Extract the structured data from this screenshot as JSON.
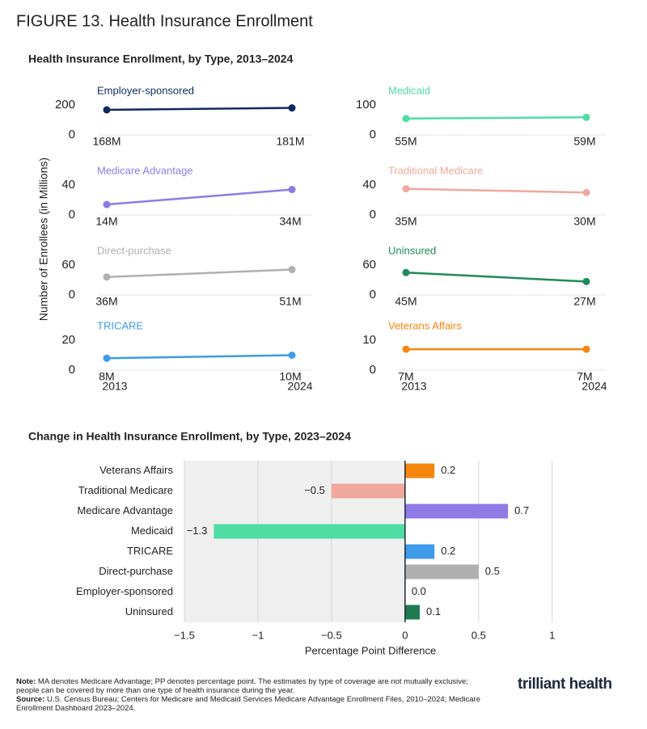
{
  "title": "FIGURE 13. Health Insurance Enrollment",
  "chart_data": [
    {
      "type": "line-panels",
      "title": "Health Insurance Enrollment, by Type, 2013–2024",
      "y_label": "Number of Enrollees (in Millions)",
      "x": [
        2013,
        2024
      ],
      "series": [
        {
          "name": "Employer-sponsored",
          "color": "#0d2b5e",
          "values": [
            168,
            181
          ],
          "value_labels": [
            "168M",
            "181M"
          ],
          "ylim": [
            0,
            200
          ],
          "yticks": [
            0,
            200
          ]
        },
        {
          "name": "Medicaid",
          "color": "#4fdca4",
          "values": [
            55,
            59
          ],
          "value_labels": [
            "55M",
            "59M"
          ],
          "ylim": [
            0,
            100
          ],
          "yticks": [
            0,
            100
          ]
        },
        {
          "name": "Medicare Advantage",
          "color": "#8f7ae6",
          "values": [
            14,
            34
          ],
          "value_labels": [
            "14M",
            "34M"
          ],
          "ylim": [
            0,
            40
          ],
          "yticks": [
            0,
            40
          ]
        },
        {
          "name": "Traditional Medicare",
          "color": "#f0a89c",
          "values": [
            35,
            30
          ],
          "value_labels": [
            "35M",
            "30M"
          ],
          "ylim": [
            0,
            40
          ],
          "yticks": [
            0,
            40
          ]
        },
        {
          "name": "Direct-purchase",
          "color": "#b0b0b0",
          "values": [
            36,
            51
          ],
          "value_labels": [
            "36M",
            "51M"
          ],
          "ylim": [
            0,
            60
          ],
          "yticks": [
            0,
            60
          ]
        },
        {
          "name": "Uninsured",
          "color": "#1f8a5c",
          "values": [
            45,
            27
          ],
          "value_labels": [
            "45M",
            "27M"
          ],
          "ylim": [
            0,
            60
          ],
          "yticks": [
            0,
            60
          ]
        },
        {
          "name": "TRICARE",
          "color": "#3d9be9",
          "values": [
            8,
            10
          ],
          "value_labels": [
            "8M",
            "10M"
          ],
          "ylim": [
            0,
            20
          ],
          "yticks": [
            0,
            20
          ]
        },
        {
          "name": "Veterans Affairs",
          "color": "#f5870f",
          "values": [
            7,
            7
          ],
          "value_labels": [
            "7M",
            "7M"
          ],
          "ylim": [
            0,
            10
          ],
          "yticks": [
            0,
            10
          ]
        }
      ]
    },
    {
      "type": "hbar",
      "title": "Change in Health Insurance Enrollment, by Type, 2023–2024",
      "x_label": "Percentage Point Difference",
      "categories": [
        "Veterans Affairs",
        "Traditional Medicare",
        "Medicare Advantage",
        "Medicaid",
        "TRICARE",
        "Direct-purchase",
        "Employer-sponsored",
        "Uninsured"
      ],
      "values": [
        0.2,
        -0.5,
        0.7,
        -1.3,
        0.2,
        0.5,
        0.0,
        0.1
      ],
      "value_labels": [
        "0.2",
        "−0.5",
        "0.7",
        "−1.3",
        "0.2",
        "0.5",
        "0.0",
        "0.1"
      ],
      "colors": [
        "#f5870f",
        "#f0a89c",
        "#8f7ae6",
        "#4fdca4",
        "#3d9be9",
        "#b0b0b0",
        "#0d2b5e",
        "#1f7a52"
      ],
      "xlim": [
        -1.5,
        1.15
      ],
      "xticks": [
        {
          "value": -1.5,
          "label": "−1.5"
        },
        {
          "value": -1,
          "label": "−1"
        },
        {
          "value": -0.5,
          "label": "−0.5"
        },
        0,
        0.5,
        1
      ],
      "grid": true
    }
  ],
  "notes": {
    "note_label": "Note:",
    "note": "MA denotes Medicare Advantage; PP denotes percentage point. The estimates by type of coverage are not mutually exclusive; people can be covered by more than one type of health insurance during the year.",
    "source_label": "Source:",
    "source": "U.S. Census Bureau; Centers for Medicare and Medicaid Services Medicare Advantage Enrollment Files, 2010–2024; Medicare Enrollment Dashboard 2023–2024."
  },
  "logo": "trilliant health"
}
